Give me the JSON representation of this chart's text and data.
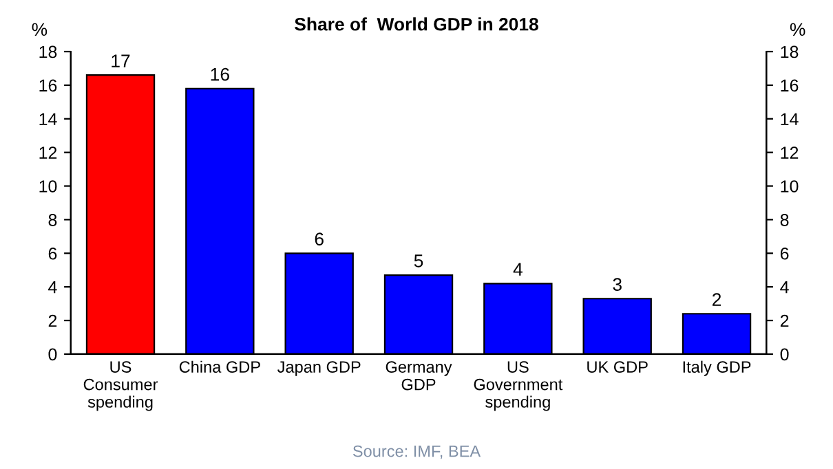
{
  "chart_data": {
    "type": "bar",
    "title": "Share of  World GDP in 2018",
    "ylabel": "%",
    "y2label": "%",
    "categories": [
      "US\nConsumer\nspending",
      "China GDP",
      "Japan GDP",
      "Germany\nGDP",
      "US\nGovernment\nspending",
      "UK GDP",
      "Italy GDP"
    ],
    "values": [
      16.6,
      15.8,
      6.0,
      4.7,
      4.2,
      3.3,
      2.4
    ],
    "colors": [
      "#ff0000",
      "#0000ff",
      "#0000ff",
      "#0000ff",
      "#0000ff",
      "#0000ff",
      "#0000ff"
    ],
    "value_labels": [
      "17",
      "16",
      "6",
      "5",
      "4",
      "3",
      "2"
    ],
    "ylim": [
      0,
      18
    ],
    "yticks": [
      0,
      2,
      4,
      6,
      8,
      10,
      12,
      14,
      16,
      18
    ],
    "y2lim": [
      0,
      18
    ],
    "y2ticks": [
      0,
      2,
      4,
      6,
      8,
      10,
      12,
      14,
      16,
      18
    ],
    "grid": false,
    "legend": false,
    "annotations": [
      "Source: IMF, BEA"
    ]
  }
}
